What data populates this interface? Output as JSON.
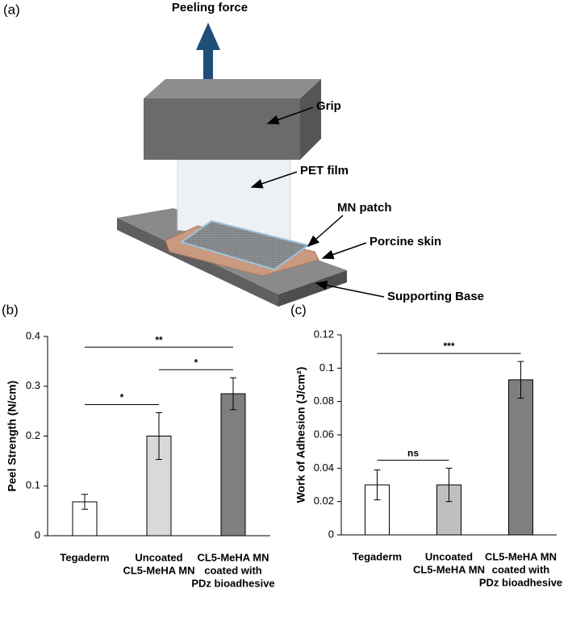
{
  "diagram": {
    "panel": "(a)",
    "force": "Peeling force",
    "grip": "Grip",
    "film": "PET film",
    "patch": "MN patch",
    "skin": "Porcine skin",
    "base": "Supporting Base"
  },
  "chart_data": [
    {
      "type": "bar",
      "panel": "(b)",
      "y_label": "Peel Strength (N/cm)",
      "categories": [
        [
          "Tegaderm"
        ],
        [
          "Uncoated",
          "CL5-MeHA MN"
        ],
        [
          "CL5-MeHA MN",
          "coated with",
          "PDz bioadhesive"
        ]
      ],
      "values": [
        0.068,
        0.2,
        0.285
      ],
      "errors": [
        0.015,
        0.047,
        0.032
      ],
      "colors": [
        "#ffffff",
        "#d9d9d9",
        "#7f7f7f"
      ],
      "ylim": [
        0,
        0.4
      ],
      "yticks": [
        0,
        0.1,
        0.2,
        0.3,
        0.4
      ],
      "significance": [
        {
          "from": 0,
          "to": 1,
          "label": "*"
        },
        {
          "from": 1,
          "to": 2,
          "label": "*"
        },
        {
          "from": 0,
          "to": 2,
          "label": "**"
        }
      ]
    },
    {
      "type": "bar",
      "panel": "(c)",
      "y_label": "Work of Adhesion (J/cm²)",
      "categories": [
        [
          "Tegaderm"
        ],
        [
          "Uncoated",
          "CL5-MeHA MN"
        ],
        [
          "CL5-MeHA MN",
          "coated with",
          "PDz bioadhesive"
        ]
      ],
      "values": [
        0.03,
        0.03,
        0.093
      ],
      "errors": [
        0.009,
        0.01,
        0.011
      ],
      "colors": [
        "#ffffff",
        "#bfbfbf",
        "#7f7f7f"
      ],
      "ylim": [
        0,
        0.12
      ],
      "yticks": [
        0,
        0.02,
        0.04,
        0.06,
        0.08,
        0.1,
        0.12
      ],
      "significance": [
        {
          "from": 0,
          "to": 1,
          "label": "ns"
        },
        {
          "from": 0,
          "to": 2,
          "label": "***"
        }
      ]
    }
  ]
}
